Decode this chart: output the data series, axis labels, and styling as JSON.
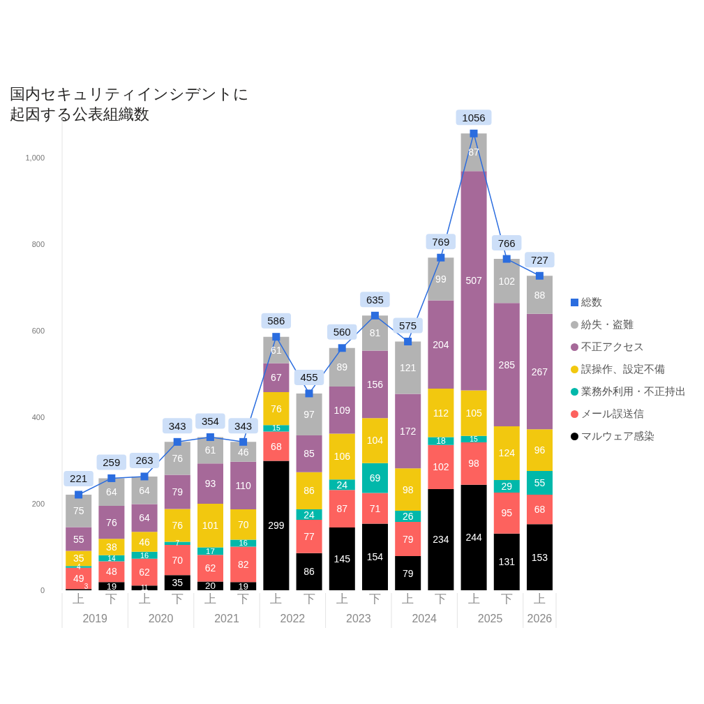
{
  "chart_data": {
    "type": "bar",
    "title": "国内セキュリティインシデントに起因する公表組織数",
    "categories": [
      "上",
      "下",
      "上",
      "下",
      "上",
      "下",
      "上",
      "下",
      "上",
      "下",
      "上",
      "下",
      "上",
      "下",
      "上"
    ],
    "stacked": true,
    "series": [
      {
        "name": "マルウェア感染",
        "color": "#000000",
        "values": [
          3,
          19,
          11,
          35,
          20,
          19,
          299,
          86,
          145,
          154,
          79,
          234,
          244,
          131,
          153
        ]
      },
      {
        "name": "メール誤送信",
        "color": "#fd625e",
        "values": [
          49,
          48,
          62,
          70,
          62,
          82,
          68,
          77,
          87,
          71,
          79,
          102,
          98,
          95,
          68
        ]
      },
      {
        "name": "業務外利用・不正持出",
        "color": "#01b8aa",
        "values": [
          4,
          14,
          16,
          7,
          17,
          16,
          15,
          24,
          24,
          69,
          26,
          18,
          15,
          29,
          55
        ]
      },
      {
        "name": "誤操作、設定不備",
        "color": "#f2c80f",
        "values": [
          35,
          38,
          46,
          76,
          101,
          70,
          76,
          86,
          106,
          104,
          98,
          112,
          105,
          124,
          96
        ]
      },
      {
        "name": "不正アクセス",
        "color": "#a66999",
        "values": [
          55,
          76,
          64,
          79,
          93,
          110,
          67,
          85,
          109,
          156,
          172,
          204,
          507,
          285,
          267
        ]
      },
      {
        "name": "紛失・盗難",
        "color": "#b3b3b3",
        "values": [
          75,
          64,
          64,
          76,
          61,
          46,
          61,
          97,
          89,
          81,
          121,
          99,
          87,
          102,
          88
        ]
      },
      {
        "name": "総数",
        "type": "line",
        "color": "#2b6ddf",
        "values": [
          221,
          259,
          263,
          343,
          354,
          343,
          586,
          455,
          560,
          635,
          575,
          769,
          1056,
          766,
          727
        ]
      }
    ],
    "ylim": [
      0,
      1100
    ],
    "yticks": [
      0,
      200,
      400,
      600,
      800,
      {
        "value": 1000,
        "label": "1,000"
      }
    ],
    "marker": "square",
    "legend": "right",
    "data_labels": true,
    "annotations": [
      "2019",
      "2020",
      "2021",
      "2022",
      "2023",
      "2024",
      "2025",
      "2026"
    ]
  }
}
